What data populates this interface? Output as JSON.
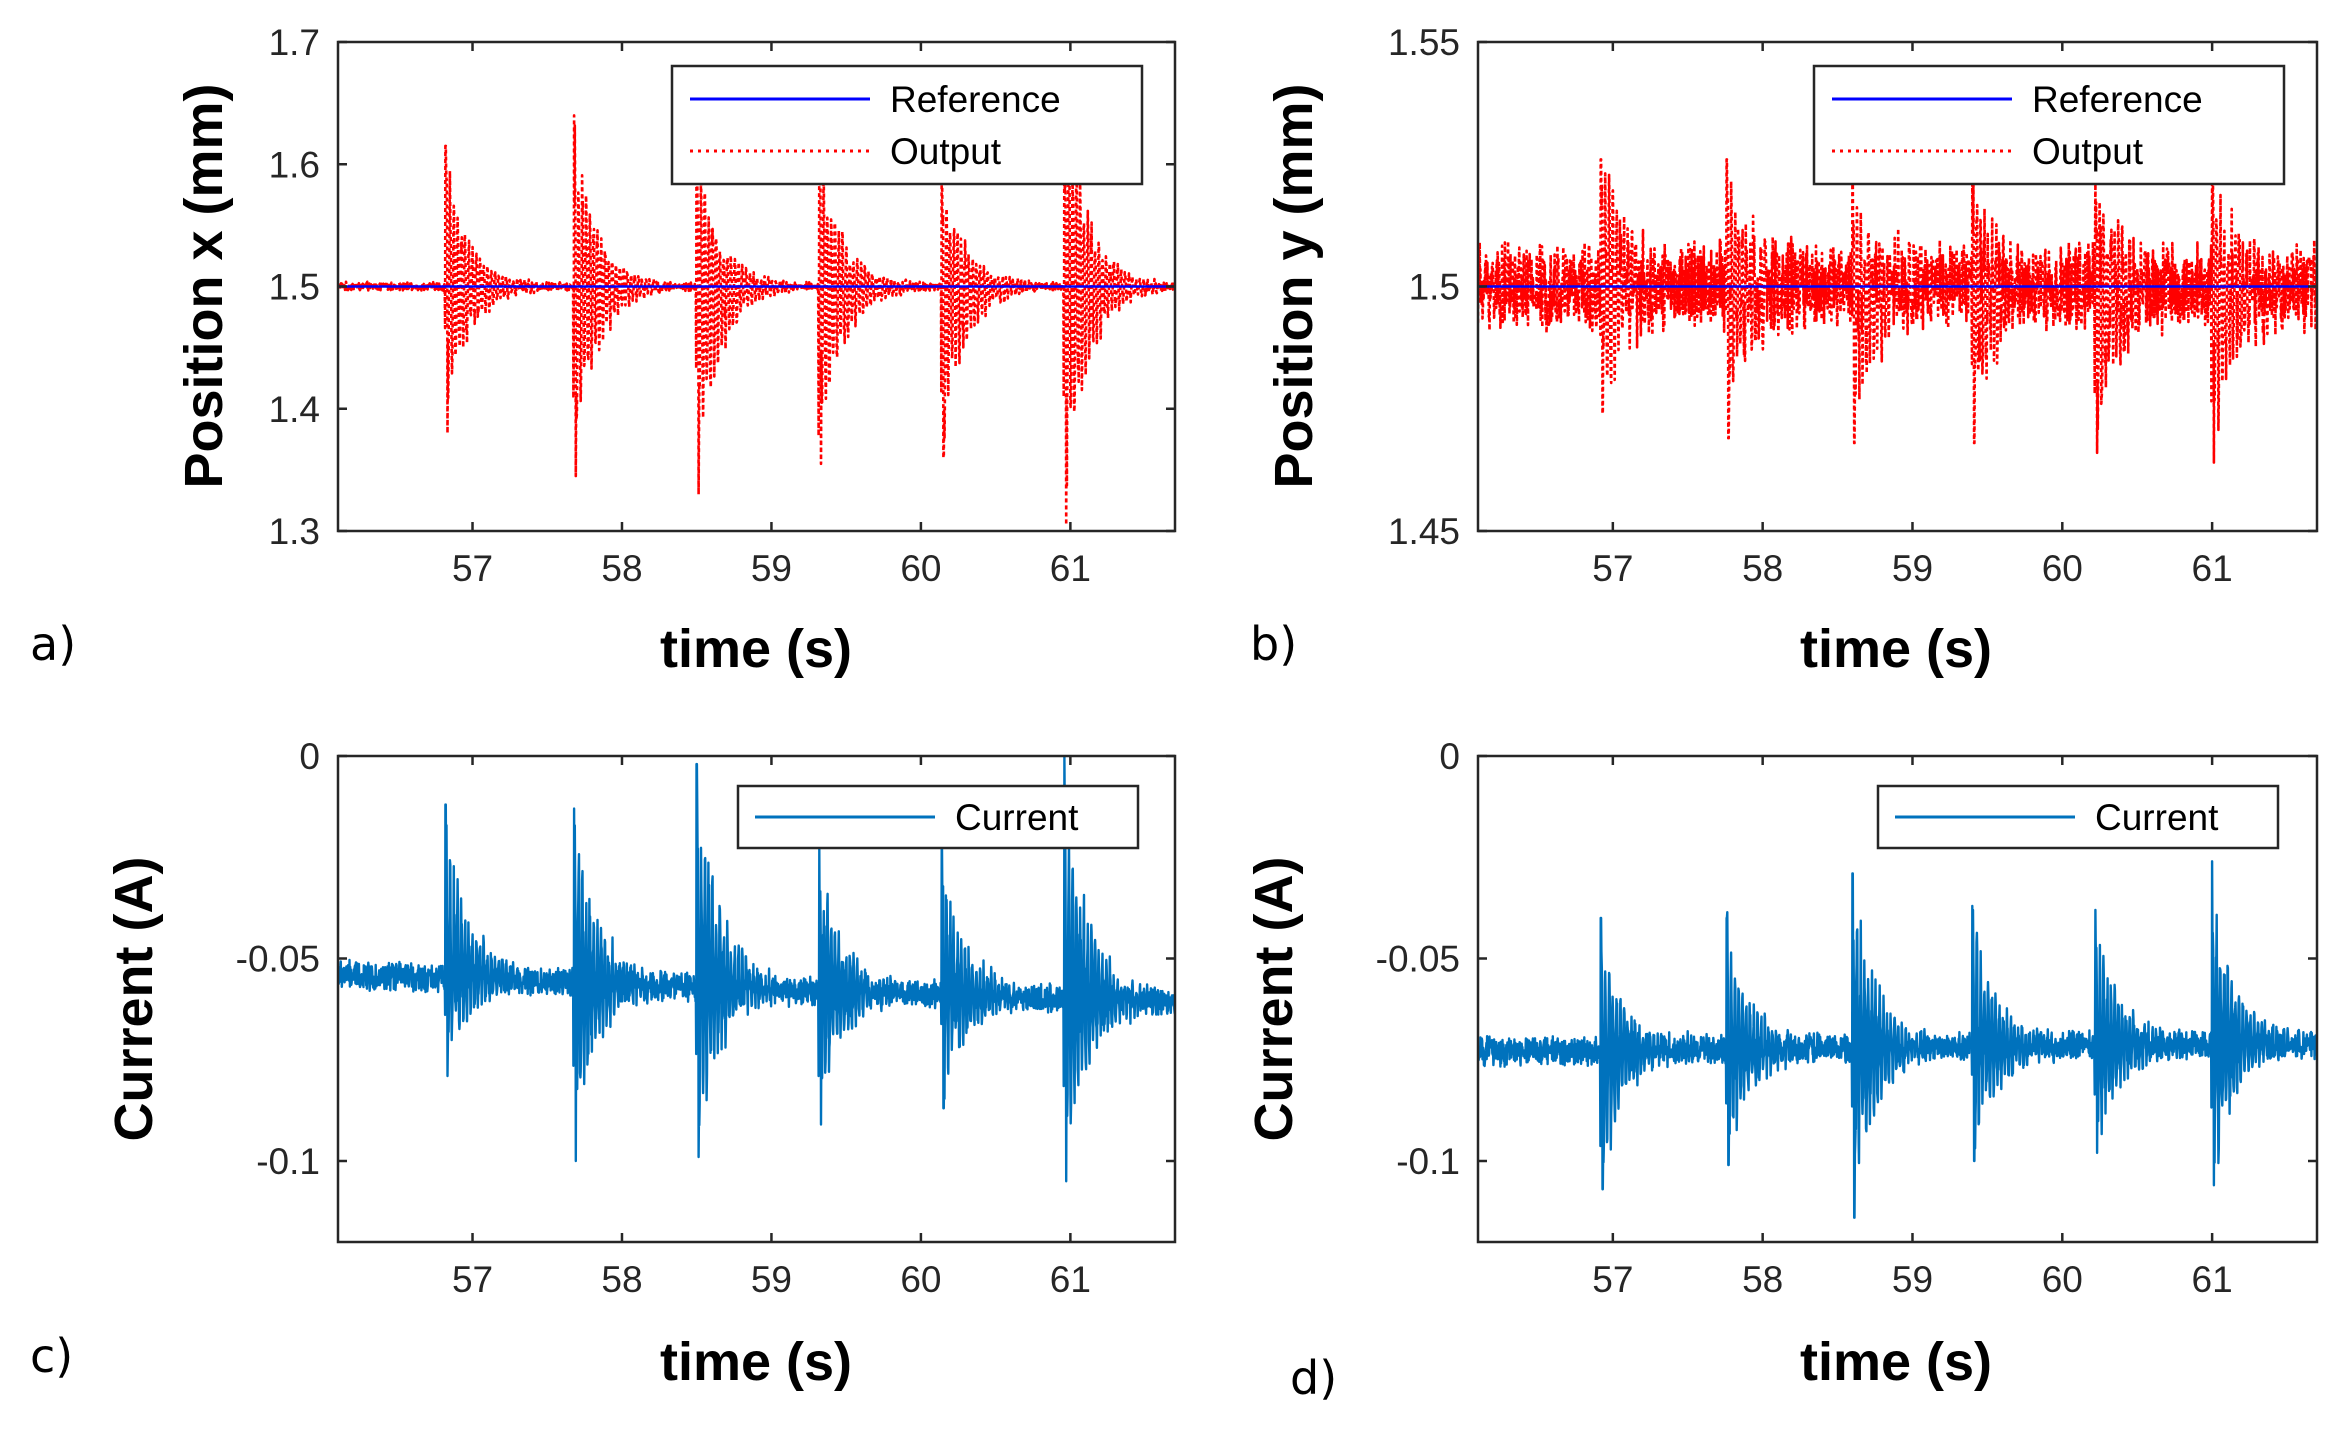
{
  "chart_data": [
    {
      "panel": "a)",
      "type": "line",
      "xlabel": "time (s)",
      "ylabel": "Position x (mm)",
      "xlim": [
        56.1,
        61.7
      ],
      "ylim": [
        1.3,
        1.7
      ],
      "xticks": [
        "57",
        "58",
        "59",
        "60",
        "61"
      ],
      "yticks": [
        "1.3",
        "1.4",
        "1.5",
        "1.6",
        "1.7"
      ],
      "legend": "top-right",
      "baseline": 1.5,
      "noise_amp": 0.004,
      "events": [
        {
          "t": 56.82,
          "max": 1.615,
          "min": 1.38
        },
        {
          "t": 57.68,
          "max": 1.64,
          "min": 1.345
        },
        {
          "t": 58.5,
          "max": 1.62,
          "min": 1.33
        },
        {
          "t": 59.32,
          "max": 1.62,
          "min": 1.355
        },
        {
          "t": 60.14,
          "max": 1.6,
          "min": 1.36
        },
        {
          "t": 60.96,
          "max": 1.68,
          "min": 1.305
        }
      ],
      "series": [
        {
          "name": "Reference",
          "color": "#0000ff",
          "style": "solid"
        },
        {
          "name": "Output",
          "color": "#ff0000",
          "style": "dotted"
        }
      ]
    },
    {
      "panel": "b)",
      "type": "line",
      "xlabel": "time (s)",
      "ylabel": "Position y (mm)",
      "xlim": [
        56.1,
        61.7
      ],
      "ylim": [
        1.45,
        1.55
      ],
      "xticks": [
        "57",
        "58",
        "59",
        "60",
        "61"
      ],
      "yticks": [
        "1.45",
        "1.5",
        "1.55"
      ],
      "legend": "top-right",
      "baseline": 1.5,
      "noise_amp": 0.01,
      "events": [
        {
          "t": 56.92,
          "max": 1.526,
          "min": 1.474
        },
        {
          "t": 57.76,
          "max": 1.526,
          "min": 1.469
        },
        {
          "t": 58.6,
          "max": 1.521,
          "min": 1.468
        },
        {
          "t": 59.4,
          "max": 1.521,
          "min": 1.468
        },
        {
          "t": 60.22,
          "max": 1.521,
          "min": 1.466
        },
        {
          "t": 61.0,
          "max": 1.521,
          "min": 1.464
        }
      ],
      "series": [
        {
          "name": "Reference",
          "color": "#0000ff",
          "style": "solid"
        },
        {
          "name": "Output",
          "color": "#ff0000",
          "style": "dotted"
        }
      ]
    },
    {
      "panel": "c)",
      "type": "line",
      "xlabel": "time (s)",
      "ylabel": "Current (A)",
      "xlim": [
        56.1,
        61.7
      ],
      "ylim": [
        -0.12,
        0
      ],
      "xticks": [
        "57",
        "58",
        "59",
        "60",
        "61"
      ],
      "yticks": [
        "-0.1",
        "-0.05",
        "0"
      ],
      "legend": "top-right",
      "baseline_start": -0.054,
      "baseline_end": -0.061,
      "noise_amp": 0.004,
      "events": [
        {
          "t": 56.82,
          "max": -0.012,
          "min": -0.079
        },
        {
          "t": 57.68,
          "max": -0.013,
          "min": -0.1
        },
        {
          "t": 58.5,
          "max": -0.002,
          "min": -0.099
        },
        {
          "t": 59.32,
          "max": -0.023,
          "min": -0.091
        },
        {
          "t": 60.14,
          "max": -0.023,
          "min": -0.087
        },
        {
          "t": 60.96,
          "max": 0.0,
          "min": -0.105
        }
      ],
      "series": [
        {
          "name": "Current",
          "color": "#0072bd",
          "style": "solid"
        }
      ]
    },
    {
      "panel": "d)",
      "type": "line",
      "xlabel": "time (s)",
      "ylabel": "Current (A)",
      "xlim": [
        56.1,
        61.7
      ],
      "ylim": [
        -0.12,
        0
      ],
      "xticks": [
        "57",
        "58",
        "59",
        "60",
        "61"
      ],
      "yticks": [
        "-0.1",
        "-0.05",
        "0"
      ],
      "legend": "top-right",
      "baseline_start": -0.073,
      "baseline_end": -0.071,
      "noise_amp": 0.004,
      "events": [
        {
          "t": 56.92,
          "max": -0.04,
          "min": -0.107
        },
        {
          "t": 57.76,
          "max": -0.04,
          "min": -0.101
        },
        {
          "t": 58.6,
          "max": -0.029,
          "min": -0.114
        },
        {
          "t": 59.4,
          "max": -0.037,
          "min": -0.1
        },
        {
          "t": 60.22,
          "max": -0.038,
          "min": -0.098
        },
        {
          "t": 61.0,
          "max": -0.026,
          "min": -0.106
        }
      ],
      "series": [
        {
          "name": "Current",
          "color": "#0072bd",
          "style": "solid"
        }
      ]
    }
  ]
}
